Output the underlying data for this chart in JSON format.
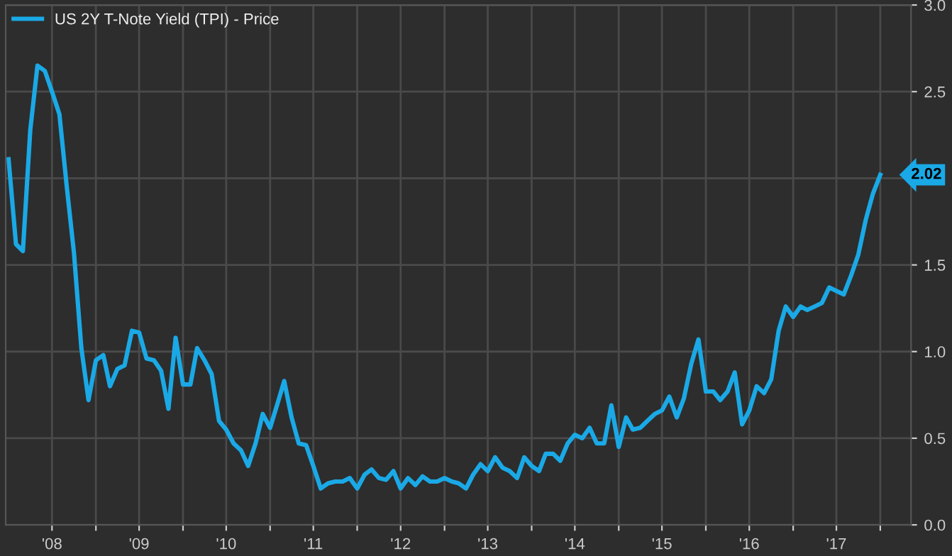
{
  "chart_data": {
    "type": "line",
    "x": [
      "2008-01",
      "2008-02",
      "2008-03",
      "2008-04",
      "2008-05",
      "2008-06",
      "2008-07",
      "2008-08",
      "2008-09",
      "2008-10",
      "2008-11",
      "2008-12",
      "2009-01",
      "2009-02",
      "2009-03",
      "2009-04",
      "2009-05",
      "2009-06",
      "2009-07",
      "2009-08",
      "2009-09",
      "2009-10",
      "2009-11",
      "2009-12",
      "2010-01",
      "2010-02",
      "2010-03",
      "2010-04",
      "2010-05",
      "2010-06",
      "2010-07",
      "2010-08",
      "2010-09",
      "2010-10",
      "2010-11",
      "2010-12",
      "2011-01",
      "2011-02",
      "2011-03",
      "2011-04",
      "2011-05",
      "2011-06",
      "2011-07",
      "2011-08",
      "2011-09",
      "2011-10",
      "2011-11",
      "2011-12",
      "2012-01",
      "2012-02",
      "2012-03",
      "2012-04",
      "2012-05",
      "2012-06",
      "2012-07",
      "2012-08",
      "2012-09",
      "2012-10",
      "2012-11",
      "2012-12",
      "2013-01",
      "2013-02",
      "2013-03",
      "2013-04",
      "2013-05",
      "2013-06",
      "2013-07",
      "2013-08",
      "2013-09",
      "2013-10",
      "2013-11",
      "2013-12",
      "2014-01",
      "2014-02",
      "2014-03",
      "2014-04",
      "2014-05",
      "2014-06",
      "2014-07",
      "2014-08",
      "2014-09",
      "2014-10",
      "2014-11",
      "2014-12",
      "2015-01",
      "2015-02",
      "2015-03",
      "2015-04",
      "2015-05",
      "2015-06",
      "2015-07",
      "2015-08",
      "2015-09",
      "2015-10",
      "2015-11",
      "2015-12",
      "2016-01",
      "2016-02",
      "2016-03",
      "2016-04",
      "2016-05",
      "2016-06",
      "2016-07",
      "2016-08",
      "2016-09",
      "2016-10",
      "2016-11",
      "2016-12",
      "2017-01",
      "2017-02",
      "2017-03",
      "2017-04",
      "2017-05",
      "2017-06",
      "2017-07",
      "2017-08",
      "2017-09",
      "2017-10",
      "2017-11",
      "2017-12",
      "2018-01"
    ],
    "series": [
      {
        "name": "US 2Y T-Note Yield (TPI) - Price",
        "color": "#1aa9e6",
        "values": [
          2.11,
          1.62,
          1.58,
          2.28,
          2.65,
          2.62,
          2.5,
          2.37,
          1.95,
          1.57,
          1.02,
          0.72,
          0.95,
          0.98,
          0.8,
          0.9,
          0.92,
          1.12,
          1.11,
          0.96,
          0.95,
          0.89,
          0.67,
          1.08,
          0.81,
          0.81,
          1.02,
          0.95,
          0.87,
          0.6,
          0.55,
          0.47,
          0.43,
          0.34,
          0.47,
          0.64,
          0.56,
          0.7,
          0.83,
          0.62,
          0.47,
          0.46,
          0.34,
          0.21,
          0.24,
          0.25,
          0.25,
          0.27,
          0.21,
          0.29,
          0.32,
          0.27,
          0.26,
          0.31,
          0.21,
          0.27,
          0.23,
          0.28,
          0.25,
          0.25,
          0.27,
          0.25,
          0.24,
          0.21,
          0.29,
          0.35,
          0.31,
          0.39,
          0.33,
          0.31,
          0.27,
          0.39,
          0.34,
          0.31,
          0.41,
          0.41,
          0.37,
          0.47,
          0.52,
          0.5,
          0.56,
          0.47,
          0.47,
          0.69,
          0.45,
          0.62,
          0.55,
          0.56,
          0.6,
          0.64,
          0.66,
          0.74,
          0.62,
          0.73,
          0.93,
          1.07,
          0.77,
          0.77,
          0.72,
          0.77,
          0.88,
          0.58,
          0.66,
          0.8,
          0.76,
          0.84,
          1.12,
          1.26,
          1.2,
          1.26,
          1.24,
          1.26,
          1.28,
          1.37,
          1.35,
          1.33,
          1.44,
          1.56,
          1.76,
          1.91,
          2.02
        ]
      }
    ],
    "xlim": [
      "2007-12-20",
      "2018-05-10"
    ],
    "xticks": [
      {
        "value": "2008-07-01",
        "label": "'08"
      },
      {
        "value": "2009-01-01",
        "label": null
      },
      {
        "value": "2009-07-01",
        "label": "'09"
      },
      {
        "value": "2010-01-01",
        "label": null
      },
      {
        "value": "2010-07-01",
        "label": "'10"
      },
      {
        "value": "2011-01-01",
        "label": null
      },
      {
        "value": "2011-07-01",
        "label": "'11"
      },
      {
        "value": "2012-01-01",
        "label": null
      },
      {
        "value": "2012-07-01",
        "label": "'12"
      },
      {
        "value": "2013-01-01",
        "label": null
      },
      {
        "value": "2013-07-01",
        "label": "'13"
      },
      {
        "value": "2014-01-01",
        "label": null
      },
      {
        "value": "2014-07-01",
        "label": "'14"
      },
      {
        "value": "2015-01-01",
        "label": null
      },
      {
        "value": "2015-07-01",
        "label": "'15"
      },
      {
        "value": "2016-01-01",
        "label": null
      },
      {
        "value": "2016-07-01",
        "label": "'16"
      },
      {
        "value": "2017-01-01",
        "label": null
      },
      {
        "value": "2017-07-01",
        "label": "'17"
      },
      {
        "value": "2018-01-01",
        "label": null
      }
    ],
    "ylim": [
      0,
      3.0
    ],
    "yticks": [
      {
        "value": 0,
        "label": "0.0"
      },
      {
        "value": 0.5,
        "label": "0.5"
      },
      {
        "value": 1.0,
        "label": "1.0"
      },
      {
        "value": 1.5,
        "label": "1.5"
      },
      {
        "value": 2.0,
        "label": null
      },
      {
        "value": 2.5,
        "label": "2.5"
      },
      {
        "value": 3.0,
        "label": "3.0"
      }
    ],
    "annotations": [
      {
        "text": "2.02",
        "x": "2018-01",
        "y": 2.02
      }
    ],
    "grid": true,
    "legend": "top left",
    "line_style": "solid",
    "marker": "none"
  }
}
